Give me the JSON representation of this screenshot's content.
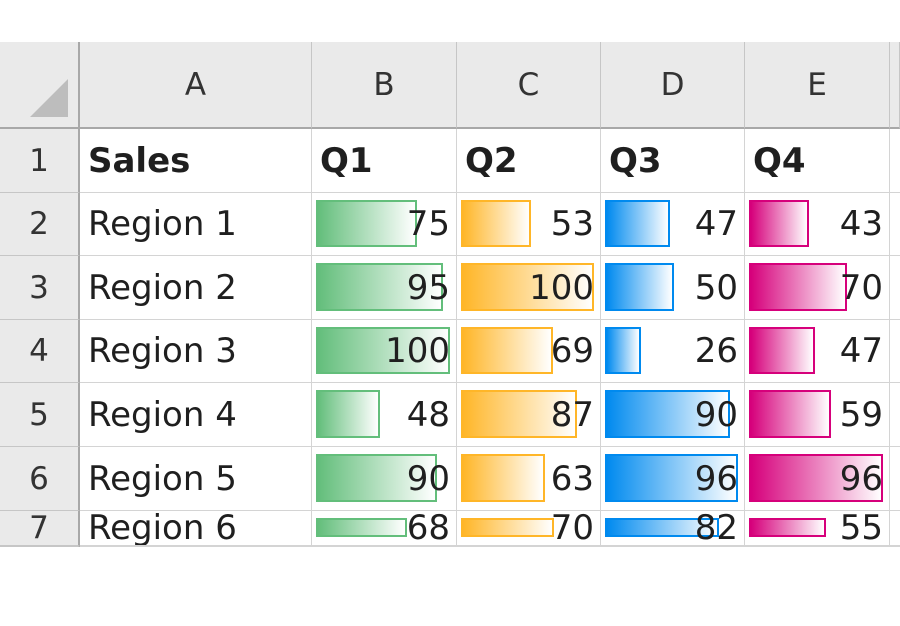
{
  "sheet": {
    "columns": [
      "A",
      "B",
      "C",
      "D",
      "E"
    ],
    "row_numbers": [
      "1",
      "2",
      "3",
      "4",
      "5",
      "6",
      "7"
    ],
    "header": {
      "a": "Sales",
      "b": "Q1",
      "c": "Q2",
      "d": "Q3",
      "e": "Q4"
    },
    "rows": [
      {
        "region": "Region 1",
        "q1": "75",
        "q2": "53",
        "q3": "47",
        "q4": "43"
      },
      {
        "region": "Region 2",
        "q1": "95",
        "q2": "100",
        "q3": "50",
        "q4": "70"
      },
      {
        "region": "Region 3",
        "q1": "100",
        "q2": "69",
        "q3": "26",
        "q4": "47"
      },
      {
        "region": "Region 4",
        "q1": "48",
        "q2": "87",
        "q3": "90",
        "q4": "59"
      },
      {
        "region": "Region 5",
        "q1": "90",
        "q2": "63",
        "q3": "96",
        "q4": "96"
      },
      {
        "region": "Region 6",
        "q1": "68",
        "q2": "70",
        "q3": "82",
        "q4": "55"
      }
    ],
    "data_bar_colors": {
      "q1": "#63be7b",
      "q2": "#ffb628",
      "q3": "#008aef",
      "q4": "#d6007b"
    }
  }
}
